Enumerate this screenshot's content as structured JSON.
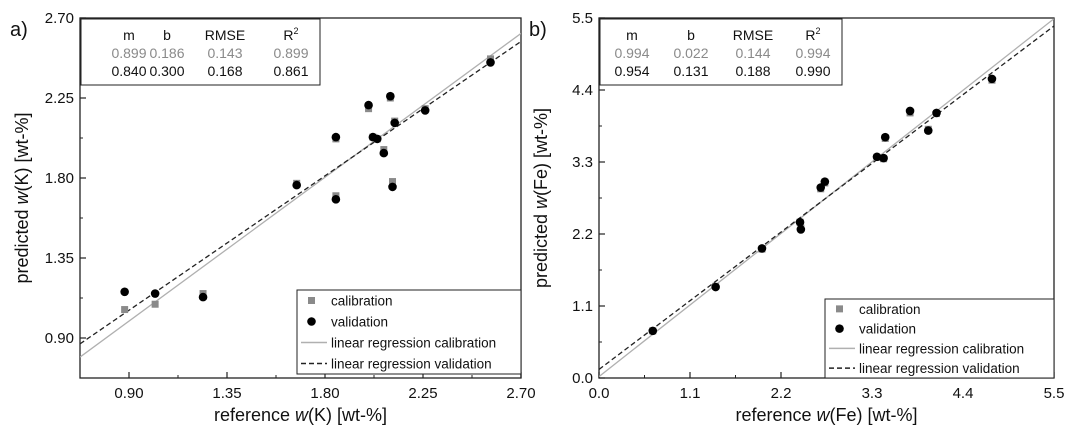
{
  "chart_data": [
    {
      "type": "scatter",
      "panel_label": "a)",
      "xlabel_prefix": "reference ",
      "xlabel_var": "w",
      "xlabel_suffix": "(K) [wt-%]",
      "ylabel_prefix": "predicted ",
      "ylabel_var": "w",
      "ylabel_suffix": "(K) [wt-%]",
      "xlim": [
        0.675,
        2.7
      ],
      "ylim": [
        0.675,
        2.7
      ],
      "xticks": [
        "0.90",
        "1.35",
        "1.80",
        "2.25",
        "2.70"
      ],
      "yticks": [
        "0.90",
        "1.35",
        "1.80",
        "2.25",
        "2.70"
      ],
      "stats": {
        "headers": [
          "m",
          "b",
          "RMSE",
          "R",
          "2"
        ],
        "calibration": [
          "0.899",
          "0.186",
          "0.143",
          "0.899"
        ],
        "validation": [
          "0.840",
          "0.300",
          "0.168",
          "0.861"
        ]
      },
      "series": [
        {
          "name": "calibration",
          "color": "#8a8a8a",
          "x": [
            0.88,
            1.02,
            1.24,
            1.67,
            1.85,
            1.85,
            2.0,
            2.02,
            2.04,
            2.07,
            2.1,
            2.11,
            2.12,
            2.26,
            2.56
          ],
          "y": [
            1.06,
            1.09,
            1.15,
            1.77,
            1.7,
            2.02,
            2.19,
            2.03,
            2.02,
            1.96,
            2.25,
            1.78,
            2.12,
            2.19,
            2.47
          ]
        },
        {
          "name": "validation",
          "color": "#000000",
          "x": [
            0.88,
            1.02,
            1.24,
            1.67,
            1.85,
            1.85,
            2.0,
            2.02,
            2.04,
            2.07,
            2.1,
            2.11,
            2.12,
            2.26,
            2.56
          ],
          "y": [
            1.16,
            1.15,
            1.13,
            1.76,
            1.68,
            2.03,
            2.21,
            2.03,
            2.02,
            1.94,
            2.26,
            1.75,
            2.11,
            2.18,
            2.45
          ]
        }
      ],
      "lines": [
        {
          "name": "linear regression calibration",
          "m": 0.899,
          "b": 0.186,
          "color": "#b0b0b0",
          "dash": "none"
        },
        {
          "name": "linear regression validation",
          "m": 0.84,
          "b": 0.3,
          "color": "#222222",
          "dash": "5,3"
        }
      ]
    },
    {
      "type": "scatter",
      "panel_label": "b)",
      "xlabel_prefix": "reference ",
      "xlabel_var": "w",
      "xlabel_suffix": "(Fe) [wt-%]",
      "ylabel_prefix": "predicted ",
      "ylabel_var": "w",
      "ylabel_suffix": "(Fe) [wt-%]",
      "xlim": [
        0.0,
        5.5
      ],
      "ylim": [
        0.0,
        5.5
      ],
      "xticks": [
        "0.0",
        "1.1",
        "2.2",
        "3.3",
        "4.4",
        "5.5"
      ],
      "yticks": [
        "0.0",
        "1.1",
        "2.2",
        "3.3",
        "4.4",
        "5.5"
      ],
      "stats": {
        "headers": [
          "m",
          "b",
          "RMSE",
          "R",
          "2"
        ],
        "calibration": [
          "0.994",
          "0.022",
          "0.144",
          "0.994"
        ],
        "validation": [
          "0.954",
          "0.131",
          "0.188",
          "0.990"
        ]
      },
      "series": [
        {
          "name": "calibration",
          "color": "#8a8a8a",
          "x": [
            0.65,
            1.41,
            1.97,
            2.43,
            2.44,
            2.68,
            2.73,
            3.36,
            3.44,
            3.46,
            3.76,
            3.98,
            4.08,
            4.75
          ],
          "y": [
            0.72,
            1.4,
            1.97,
            2.38,
            2.29,
            2.89,
            2.98,
            3.37,
            3.35,
            3.66,
            4.05,
            3.8,
            4.04,
            4.55
          ]
        },
        {
          "name": "validation",
          "color": "#000000",
          "x": [
            0.65,
            1.41,
            1.97,
            2.43,
            2.44,
            2.68,
            2.73,
            3.36,
            3.44,
            3.46,
            3.76,
            3.98,
            4.08,
            4.75
          ],
          "y": [
            0.72,
            1.39,
            1.98,
            2.38,
            2.27,
            2.91,
            3.0,
            3.38,
            3.36,
            3.68,
            4.08,
            3.78,
            4.05,
            4.57
          ]
        }
      ],
      "lines": [
        {
          "name": "linear regression calibration",
          "m": 0.994,
          "b": 0.022,
          "color": "#b0b0b0",
          "dash": "none"
        },
        {
          "name": "linear regression validation",
          "m": 0.954,
          "b": 0.131,
          "color": "#222222",
          "dash": "5,3"
        }
      ]
    }
  ],
  "legend_labels": [
    "calibration",
    "validation",
    "linear regression calibration",
    "linear regression validation"
  ]
}
